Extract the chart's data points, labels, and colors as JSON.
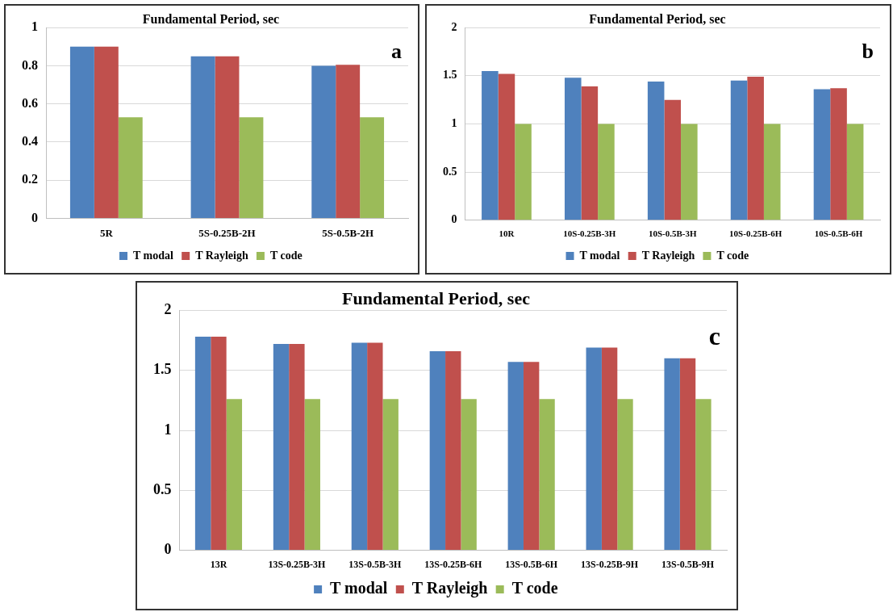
{
  "chart_data": [
    {
      "type": "bar",
      "title": "Fundamental Period, sec",
      "categories": [
        "5R",
        "5S-0.25B-2H",
        "5S-0.5B-2H"
      ],
      "series": [
        {
          "name": "T modal",
          "color": "#4f81bd",
          "values": [
            0.9,
            0.85,
            0.8
          ]
        },
        {
          "name": "T Rayleigh",
          "color": "#c0504d",
          "values": [
            0.9,
            0.85,
            0.805
          ]
        },
        {
          "name": "T code",
          "color": "#9bbb59",
          "values": [
            0.53,
            0.53,
            0.53
          ]
        }
      ],
      "ylim": [
        0,
        1
      ],
      "yticks": [
        0,
        0.2,
        0.4,
        0.6,
        0.8,
        1
      ],
      "grid": "y",
      "legend": "bottom",
      "annotations": [
        "a"
      ]
    },
    {
      "type": "bar",
      "title": "Fundamental Period, sec",
      "categories": [
        "10R",
        "10S-0.25B-3H",
        "10S-0.5B-3H",
        "10S-0.25B-6H",
        "10S-0.5B-6H"
      ],
      "series": [
        {
          "name": "T modal",
          "color": "#4f81bd",
          "values": [
            1.55,
            1.48,
            1.44,
            1.45,
            1.36
          ]
        },
        {
          "name": "T Rayleigh",
          "color": "#c0504d",
          "values": [
            1.52,
            1.39,
            1.25,
            1.49,
            1.37
          ]
        },
        {
          "name": "T code",
          "color": "#9bbb59",
          "values": [
            1,
            1,
            1,
            1,
            1
          ]
        }
      ],
      "ylim": [
        0,
        2
      ],
      "yticks": [
        0,
        0.5,
        1,
        1.5,
        2
      ],
      "grid": "y",
      "legend": "bottom",
      "annotations": [
        "b"
      ]
    },
    {
      "type": "bar",
      "title": "Fundamental Period, sec",
      "categories": [
        "13R",
        "13S-0.25B-3H",
        "13S-0.5B-3H",
        "13S-0.25B-6H",
        "13S-0.5B-6H",
        "13S-0.25B-9H",
        "13S-0.5B-9H"
      ],
      "series": [
        {
          "name": "T modal",
          "color": "#4f81bd",
          "values": [
            1.78,
            1.72,
            1.73,
            1.66,
            1.57,
            1.69,
            1.6
          ]
        },
        {
          "name": "T Rayleigh",
          "color": "#c0504d",
          "values": [
            1.78,
            1.72,
            1.73,
            1.66,
            1.57,
            1.69,
            1.6
          ]
        },
        {
          "name": "T code",
          "color": "#9bbb59",
          "values": [
            1.26,
            1.26,
            1.26,
            1.26,
            1.26,
            1.26,
            1.26
          ]
        }
      ],
      "ylim": [
        0,
        2
      ],
      "yticks": [
        0,
        0.5,
        1,
        1.5,
        2
      ],
      "grid": "y",
      "legend": "bottom",
      "annotations": [
        "c"
      ]
    }
  ]
}
